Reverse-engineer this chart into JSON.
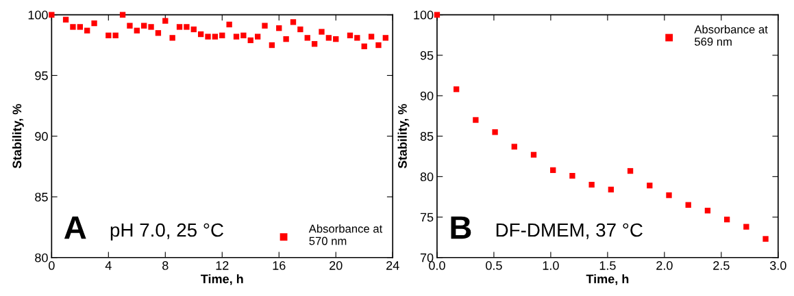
{
  "chart_data": [
    {
      "type": "scatter",
      "xlabel": "Time, h",
      "ylabel": "Stability, %",
      "annotations": [
        "A",
        "pH 7.0, 25 °C"
      ],
      "x": [
        0,
        1,
        1.5,
        2,
        2.5,
        3,
        4,
        4.5,
        5,
        5.5,
        6,
        6.5,
        7,
        7.5,
        8,
        8.5,
        9,
        9.5,
        10,
        10.5,
        11,
        11.5,
        12,
        12.5,
        13,
        13.5,
        14,
        14.5,
        15,
        15.5,
        16,
        16.5,
        17,
        17.5,
        18,
        18.5,
        19,
        19.5,
        20,
        21,
        21.5,
        22,
        22.5,
        23,
        23.5
      ],
      "series": [
        {
          "name": "Absorbance at\n570 nm",
          "color": "#ff0000",
          "values": [
            100,
            99.6,
            99.0,
            99.0,
            98.7,
            99.3,
            98.3,
            98.3,
            100,
            99.1,
            98.7,
            99.1,
            99.0,
            98.5,
            99.5,
            98.1,
            99.0,
            99.0,
            98.8,
            98.4,
            98.2,
            98.2,
            98.3,
            99.2,
            98.2,
            98.3,
            97.9,
            98.2,
            99.1,
            97.5,
            98.9,
            98.0,
            99.4,
            98.8,
            98.1,
            97.6,
            98.6,
            98.1,
            98.0,
            98.3,
            98.1,
            97.4,
            98.2,
            97.5,
            98.1
          ]
        }
      ],
      "xlim": [
        0,
        24
      ],
      "xticks": [
        0,
        4,
        8,
        12,
        16,
        20,
        24
      ],
      "ylim": [
        80,
        100
      ],
      "yticks": [
        80,
        85,
        90,
        95,
        100
      ],
      "marker": "square",
      "legend": "bottom right",
      "grid": false
    },
    {
      "type": "scatter",
      "xlabel": "Time, h",
      "ylabel": "Stability, %",
      "annotations": [
        "B",
        "DF-DMEM, 37 °C"
      ],
      "x": [
        0,
        0.17,
        0.34,
        0.51,
        0.68,
        0.85,
        1.02,
        1.19,
        1.36,
        1.53,
        1.7,
        1.87,
        2.04,
        2.21,
        2.38,
        2.55,
        2.72,
        2.89
      ],
      "series": [
        {
          "name": "Absorbance at\n569 nm",
          "color": "#ff0000",
          "values": [
            100,
            90.8,
            87.0,
            85.5,
            83.7,
            82.7,
            80.8,
            80.1,
            79.0,
            78.4,
            80.7,
            78.9,
            77.7,
            76.5,
            75.8,
            74.7,
            73.8,
            72.3
          ]
        }
      ],
      "xlim": [
        0,
        3
      ],
      "xticks": [
        {
          "value": 0,
          "label": "0.0"
        },
        {
          "value": 0.5,
          "label": "0.5"
        },
        {
          "value": 1,
          "label": "1.0"
        },
        {
          "value": 1.5,
          "label": "1.5"
        },
        {
          "value": 2,
          "label": "2.0"
        },
        {
          "value": 2.5,
          "label": "2.5"
        },
        {
          "value": 3,
          "label": "3.0"
        }
      ],
      "ylim": [
        70,
        100
      ],
      "yticks": [
        70,
        75,
        80,
        85,
        90,
        95,
        100
      ],
      "marker": "square",
      "legend": "top right",
      "grid": false
    }
  ]
}
